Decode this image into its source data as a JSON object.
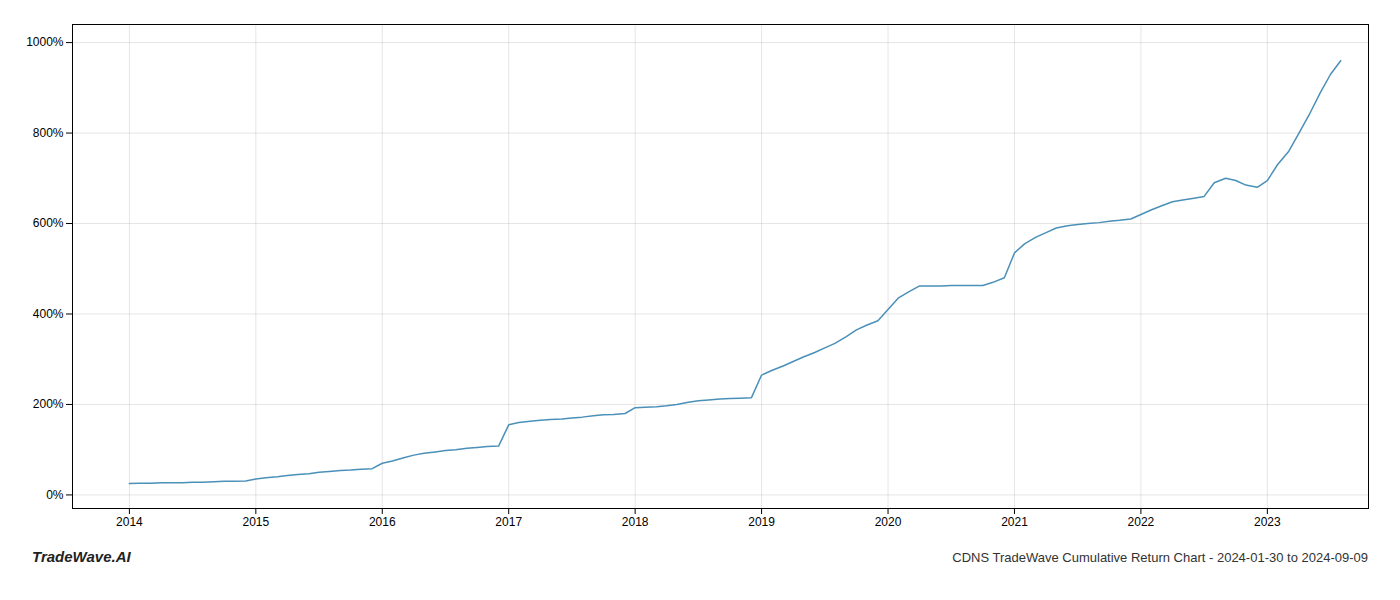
{
  "chart_data": {
    "type": "line",
    "title": "CDNS TradeWave Cumulative Return Chart - 2024-01-30 to 2024-09-09",
    "annotations": [
      "TradeWave.AI"
    ],
    "color": "#4a90b8",
    "grid": true,
    "xlim": [
      2013.55,
      2023.8
    ],
    "xticks": [
      2014,
      2015,
      2016,
      2017,
      2018,
      2019,
      2020,
      2021,
      2022,
      2023
    ],
    "ylim": [
      -30,
      1040
    ],
    "yticks": [
      {
        "value": 0,
        "label": "0%"
      },
      {
        "value": 200,
        "label": "200%"
      },
      {
        "value": 400,
        "label": "400%"
      },
      {
        "value": 600,
        "label": "600%"
      },
      {
        "value": 800,
        "label": "800%"
      },
      {
        "value": 1000,
        "label": "1000%"
      }
    ],
    "x": [
      2014.0,
      2014.08,
      2014.17,
      2014.25,
      2014.33,
      2014.42,
      2014.5,
      2014.58,
      2014.67,
      2014.75,
      2014.83,
      2014.92,
      2015.0,
      2015.08,
      2015.17,
      2015.25,
      2015.33,
      2015.42,
      2015.5,
      2015.58,
      2015.67,
      2015.75,
      2015.83,
      2015.92,
      2016.0,
      2016.08,
      2016.17,
      2016.25,
      2016.33,
      2016.42,
      2016.5,
      2016.58,
      2016.67,
      2016.75,
      2016.83,
      2016.92,
      2017.0,
      2017.08,
      2017.17,
      2017.25,
      2017.33,
      2017.42,
      2017.5,
      2017.58,
      2017.67,
      2017.75,
      2017.83,
      2017.92,
      2018.0,
      2018.08,
      2018.17,
      2018.25,
      2018.33,
      2018.42,
      2018.5,
      2018.58,
      2018.67,
      2018.75,
      2018.83,
      2018.92,
      2019.0,
      2019.08,
      2019.17,
      2019.25,
      2019.33,
      2019.42,
      2019.5,
      2019.58,
      2019.67,
      2019.75,
      2019.83,
      2019.92,
      2020.0,
      2020.08,
      2020.17,
      2020.25,
      2020.33,
      2020.42,
      2020.5,
      2020.58,
      2020.67,
      2020.75,
      2020.83,
      2020.92,
      2021.0,
      2021.08,
      2021.17,
      2021.25,
      2021.33,
      2021.42,
      2021.5,
      2021.58,
      2021.67,
      2021.75,
      2021.83,
      2021.92,
      2022.0,
      2022.08,
      2022.17,
      2022.25,
      2022.33,
      2022.42,
      2022.5,
      2022.58,
      2022.67,
      2022.75,
      2022.83,
      2022.92,
      2023.0,
      2023.08,
      2023.17,
      2023.25,
      2023.33,
      2023.42,
      2023.5,
      2023.58
    ],
    "values": [
      25,
      26,
      26,
      27,
      27,
      27,
      28,
      28,
      29,
      30,
      30,
      31,
      35,
      38,
      40,
      43,
      45,
      47,
      50,
      52,
      54,
      55,
      57,
      58,
      70,
      75,
      82,
      88,
      92,
      95,
      98,
      100,
      103,
      105,
      107,
      108,
      155,
      160,
      163,
      165,
      167,
      168,
      170,
      172,
      175,
      177,
      178,
      180,
      193,
      194,
      195,
      197,
      200,
      205,
      208,
      210,
      212,
      213,
      214,
      215,
      265,
      275,
      285,
      295,
      305,
      315,
      325,
      335,
      350,
      365,
      375,
      385,
      410,
      435,
      450,
      462,
      462,
      462,
      463,
      463,
      463,
      463,
      470,
      480,
      535,
      555,
      570,
      580,
      590,
      595,
      598,
      600,
      602,
      605,
      607,
      610,
      620,
      630,
      640,
      648,
      652,
      656,
      660,
      690,
      700,
      695,
      685,
      680,
      695,
      730,
      760,
      800,
      840,
      890,
      930,
      960
    ]
  }
}
